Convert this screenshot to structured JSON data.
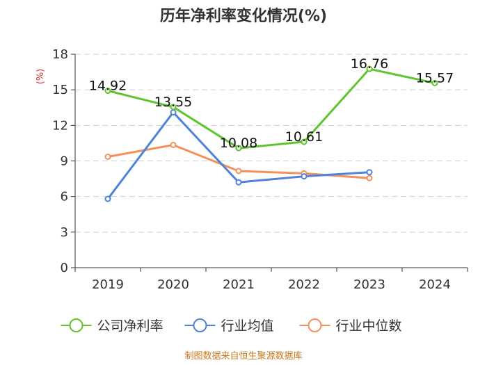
{
  "chart_data": {
    "type": "line",
    "title": "历年净利率变化情况(%)",
    "ylabel": "(%)",
    "xlabel": "",
    "ylim": [
      0,
      18
    ],
    "yticks": [
      0,
      3,
      6,
      9,
      12,
      15,
      18
    ],
    "categories": [
      "2019",
      "2020",
      "2021",
      "2022",
      "2023",
      "2024"
    ],
    "grid": true,
    "legend_position": "bottom",
    "series": [
      {
        "name": "公司净利率",
        "color": "#5fc42d",
        "values": [
          14.92,
          13.55,
          10.08,
          10.61,
          16.76,
          15.57
        ],
        "show_labels": true
      },
      {
        "name": "行业均值",
        "color": "#4f82d9",
        "values": [
          5.8,
          13.1,
          7.2,
          7.7,
          8.05,
          null
        ],
        "show_labels": false
      },
      {
        "name": "行业中位数",
        "color": "#f4915b",
        "values": [
          9.35,
          10.35,
          8.15,
          7.95,
          7.55,
          null
        ],
        "show_labels": false
      }
    ],
    "source": "制图数据来自恒生聚源数据库"
  }
}
